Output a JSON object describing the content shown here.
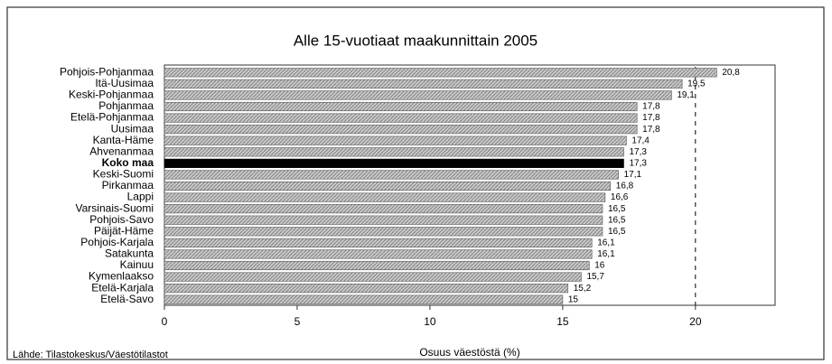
{
  "chart_data": {
    "type": "barh",
    "title": "Alle 15-vuotiaat maakunnittain 2005",
    "xlabel": "Osuus väestöstä (%)",
    "source": "Lähde: Tilastokeskus/Väestötilastot",
    "categories": [
      "Pohjois-Pohjanmaa",
      "Itä-Uusimaa",
      "Keski-Pohjanmaa",
      "Pohjanmaa",
      "Etelä-Pohjanmaa",
      "Uusimaa",
      "Kanta-Häme",
      "Ahvenanmaa",
      "Koko maa",
      "Keski-Suomi",
      "Pirkanmaa",
      "Lappi",
      "Varsinais-Suomi",
      "Pohjois-Savo",
      "Päijät-Häme",
      "Pohjois-Karjala",
      "Satakunta",
      "Kainuu",
      "Kymenlaakso",
      "Etelä-Karjala",
      "Etelä-Savo"
    ],
    "values": [
      20.8,
      19.5,
      19.1,
      17.8,
      17.8,
      17.8,
      17.4,
      17.3,
      17.3,
      17.1,
      16.8,
      16.6,
      16.5,
      16.5,
      16.5,
      16.1,
      16.1,
      16,
      15.7,
      15.2,
      15
    ],
    "value_labels": [
      "20,8",
      "19,5",
      "19,1",
      "17,8",
      "17,8",
      "17,8",
      "17,4",
      "17,3",
      "17,3",
      "17,1",
      "16,8",
      "16,6",
      "16,5",
      "16,5",
      "16,5",
      "16,1",
      "16,1",
      "16",
      "15,7",
      "15,2",
      "15"
    ],
    "color": "#a8a8a8",
    "highlight_index": 8,
    "highlight_color": "#000000",
    "reference_x": 20,
    "xlim": [
      0,
      23
    ],
    "xticks": [
      0,
      5,
      10,
      15,
      20
    ]
  }
}
